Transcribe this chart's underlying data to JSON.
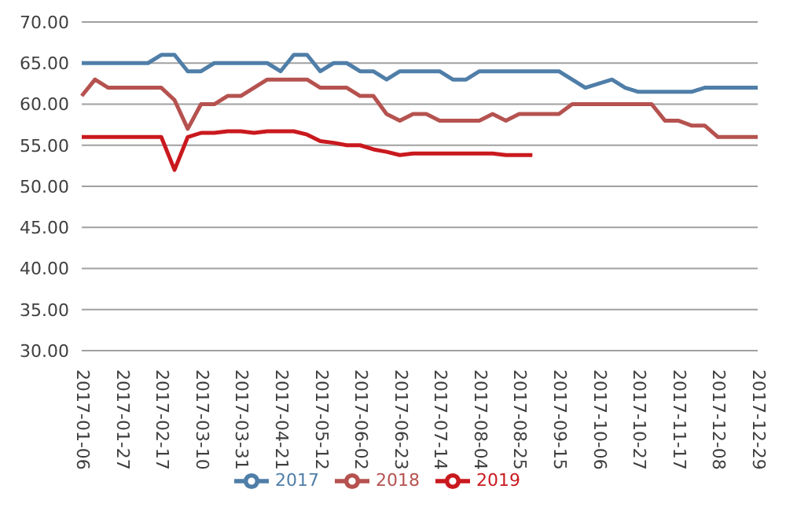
{
  "chart_data": {
    "type": "line",
    "categories": [
      "2017-01-06",
      null,
      null,
      "2017-01-27",
      null,
      null,
      "2017-02-17",
      null,
      null,
      "2017-03-10",
      null,
      null,
      "2017-03-31",
      null,
      null,
      "2017-04-21",
      null,
      null,
      "2017-05-12",
      null,
      null,
      "2017-06-02",
      null,
      null,
      "2017-06-23",
      null,
      null,
      "2017-07-14",
      null,
      null,
      "2017-08-04",
      null,
      null,
      "2017-08-25",
      null,
      null,
      "2017-09-15",
      null,
      null,
      "2017-10-06",
      null,
      null,
      "2017-10-27",
      null,
      null,
      "2017-11-17",
      null,
      null,
      "2017-12-08",
      null,
      null,
      "2017-12-29"
    ],
    "series": [
      {
        "name": "2017",
        "color": "#4f7ea8",
        "values": [
          65,
          65,
          65,
          65,
          65,
          65,
          66,
          66,
          64,
          64,
          65,
          65,
          65,
          65,
          65,
          64,
          66,
          66,
          64,
          65,
          65,
          64,
          64,
          63,
          64,
          64,
          64,
          64,
          63,
          63,
          64,
          64,
          64,
          64,
          64,
          64,
          64,
          63,
          62,
          62.5,
          63,
          62,
          61.5,
          61.5,
          61.5,
          61.5,
          61.5,
          62,
          62,
          62,
          62,
          62
        ]
      },
      {
        "name": "2018",
        "color": "#b5524f",
        "values": [
          61,
          63,
          62,
          62,
          62,
          62,
          62,
          60.5,
          57,
          60,
          60,
          61,
          61,
          62,
          63,
          63,
          63,
          63,
          62,
          62,
          62,
          61,
          61,
          58.8,
          58,
          58.8,
          58.8,
          58,
          58,
          58,
          58,
          58.8,
          58,
          58.8,
          58.8,
          58.8,
          58.8,
          60,
          60,
          60,
          60,
          60,
          60,
          60,
          58,
          58,
          57.4,
          57.4,
          56,
          56,
          56,
          56
        ]
      },
      {
        "name": "2019",
        "color": "#c9191e",
        "values": [
          56,
          56,
          56,
          56,
          56,
          56,
          56,
          52,
          56,
          56.5,
          56.5,
          56.7,
          56.7,
          56.5,
          56.7,
          56.7,
          56.7,
          56.3,
          55.5,
          55.3,
          55,
          55,
          54.5,
          54.2,
          53.8,
          54,
          54,
          54,
          54,
          54,
          54,
          54,
          53.8,
          53.8,
          53.8,
          null,
          null,
          null,
          null,
          null,
          null,
          null,
          null,
          null,
          null,
          null,
          null,
          null,
          null,
          null,
          null,
          null
        ]
      }
    ],
    "ylim": [
      30,
      70
    ],
    "yticks": [
      {
        "value": 30,
        "label": "30.00"
      },
      {
        "value": 35,
        "label": "35.00"
      },
      {
        "value": 40,
        "label": "40.00"
      },
      {
        "value": 45,
        "label": "45.00"
      },
      {
        "value": 50,
        "label": "50.00"
      },
      {
        "value": 55,
        "label": "55.00"
      },
      {
        "value": 60,
        "label": "60.00"
      },
      {
        "value": 65,
        "label": "65.00"
      },
      {
        "value": 70,
        "label": "70.00"
      }
    ],
    "grid": "y",
    "legend": "bottom",
    "marker": "none",
    "line_style": "solid"
  }
}
